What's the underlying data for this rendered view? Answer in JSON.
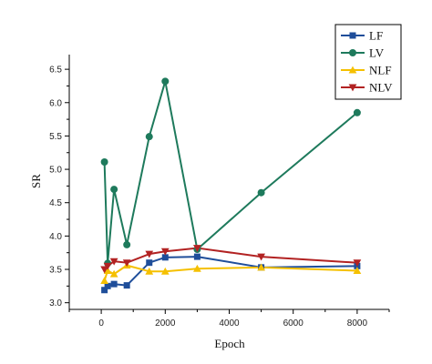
{
  "chart_data": {
    "type": "line",
    "title": "",
    "xlabel": "Epoch",
    "ylabel": "SR",
    "xlim": [
      -1000,
      9000
    ],
    "ylim": [
      2.9,
      6.72
    ],
    "xticks": [
      0,
      2000,
      4000,
      6000,
      8000
    ],
    "yticks": [
      3.0,
      3.5,
      4.0,
      4.5,
      5.0,
      5.5,
      6.0,
      6.5
    ],
    "ytick_labels": [
      "3.0",
      "3.5",
      "4.0",
      "4.5",
      "5.0",
      "5.5",
      "6.0",
      "6.5"
    ],
    "grid": false,
    "legend_position": "top-right",
    "series": [
      {
        "name": "LF",
        "color": "#1f4e9a",
        "marker": "square",
        "x": [
          100,
          200,
          400,
          800,
          1500,
          2000,
          3000,
          5000,
          8000
        ],
        "y": [
          3.19,
          3.25,
          3.28,
          3.26,
          3.6,
          3.68,
          3.69,
          3.53,
          3.55
        ]
      },
      {
        "name": "LV",
        "color": "#1e7a5c",
        "marker": "circle",
        "x": [
          100,
          200,
          400,
          800,
          1500,
          2000,
          3000,
          5000,
          8000
        ],
        "y": [
          5.11,
          3.59,
          4.7,
          3.87,
          5.49,
          6.32,
          3.8,
          4.65,
          5.85
        ]
      },
      {
        "name": "NLF",
        "color": "#f5c000",
        "marker": "triangle-up",
        "x": [
          100,
          200,
          400,
          800,
          1500,
          2000,
          3000,
          5000,
          8000
        ],
        "y": [
          3.33,
          3.48,
          3.43,
          3.56,
          3.47,
          3.47,
          3.51,
          3.53,
          3.48
        ]
      },
      {
        "name": "NLV",
        "color": "#b22222",
        "marker": "triangle-down",
        "x": [
          100,
          200,
          400,
          800,
          1500,
          2000,
          3000,
          5000,
          8000
        ],
        "y": [
          3.5,
          3.55,
          3.62,
          3.6,
          3.73,
          3.77,
          3.82,
          3.69,
          3.6
        ]
      }
    ]
  }
}
